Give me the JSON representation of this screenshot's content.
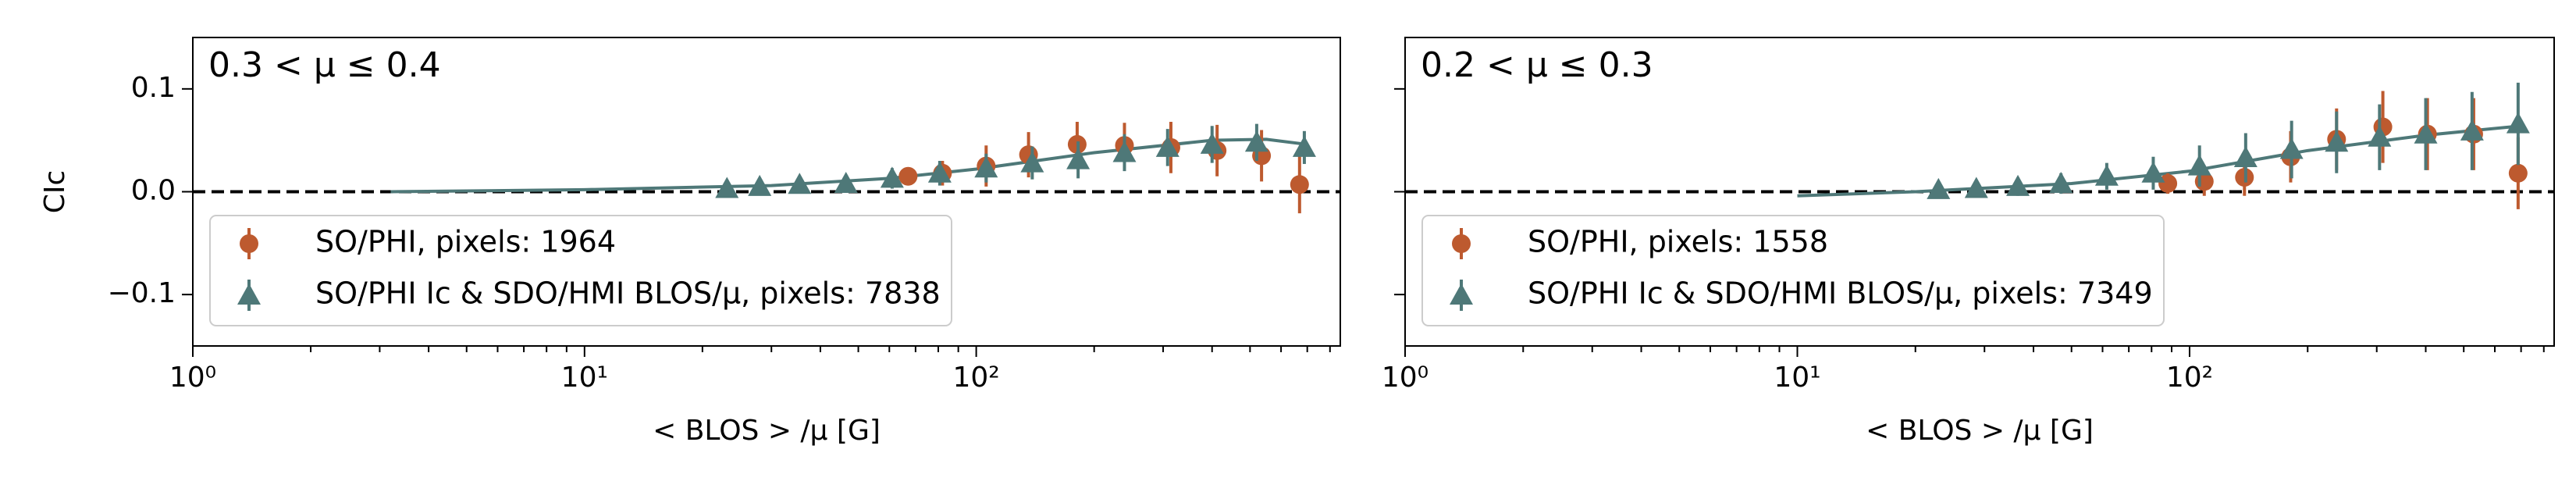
{
  "chart_data": [
    {
      "type": "scatter",
      "panel_label": "0.3 < μ ≤  0.4",
      "xlabel": "< BLOS > /μ [G]",
      "ylabel": "CIc",
      "log_x": true,
      "xlim": [
        1,
        850
      ],
      "ylim": [
        -0.15,
        0.15
      ],
      "xticks": [
        {
          "value": 1,
          "label": "10⁰"
        },
        {
          "value": 10,
          "label": "10¹"
        },
        {
          "value": 100,
          "label": "10²"
        }
      ],
      "yticks": [
        {
          "value": -0.1,
          "label": "−0.1"
        },
        {
          "value": 0,
          "label": "0.0"
        },
        0.1
      ],
      "show_ytick_labels": true,
      "reference_line": 0,
      "legend": "lower left",
      "series": [
        {
          "name": "SO/PHI, pixels: 1964",
          "color": "#bd5a2f",
          "marker": "circle",
          "x": [
            67,
            82,
            106,
            136,
            181,
            239,
            314,
            412,
            535,
            669
          ],
          "values": [
            0.015,
            0.018,
            0.025,
            0.036,
            0.046,
            0.045,
            0.043,
            0.04,
            0.035,
            0.007
          ],
          "errors": [
            0.008,
            0.012,
            0.02,
            0.022,
            0.022,
            0.022,
            0.025,
            0.025,
            0.025,
            0.028
          ]
        },
        {
          "name": "SO/PHI Ic & SDO/HMI BLOS/μ, pixels: 7838",
          "color": "#4e7878",
          "marker": "triangle",
          "x": [
            23.1,
            28,
            35.4,
            46.5,
            61,
            80.7,
            106,
            139,
            182,
            239,
            308,
            400,
            520,
            688
          ],
          "values": [
            0.003,
            0.005,
            0.007,
            0.008,
            0.013,
            0.018,
            0.023,
            0.028,
            0.031,
            0.038,
            0.043,
            0.046,
            0.048,
            0.043
          ],
          "errors": [
            0.006,
            0.006,
            0.007,
            0.008,
            0.01,
            0.012,
            0.014,
            0.016,
            0.018,
            0.018,
            0.018,
            0.018,
            0.018,
            0.016
          ]
        }
      ],
      "fit": {
        "color": "#4e7878",
        "x": [
          3.2,
          10,
          30,
          60,
          100,
          200,
          400,
          550,
          700
        ],
        "values": [
          0,
          0.002,
          0.006,
          0.013,
          0.022,
          0.038,
          0.05,
          0.051,
          0.046
        ]
      }
    },
    {
      "type": "scatter",
      "panel_label": "0.2 < μ ≤  0.3",
      "xlabel": "< BLOS > /μ [G]",
      "log_x": true,
      "xlim": [
        1,
        850
      ],
      "ylim": [
        -0.15,
        0.15
      ],
      "xticks": [
        {
          "value": 1,
          "label": "10⁰"
        },
        {
          "value": 10,
          "label": "10¹"
        },
        {
          "value": 100,
          "label": "10²"
        }
      ],
      "yticks": [
        -0.1,
        0,
        0.1
      ],
      "show_ytick_labels": false,
      "reference_line": 0,
      "legend": "lower left",
      "series": [
        {
          "name": "SO/PHI, pixels: 1558",
          "color": "#bd5a2f",
          "marker": "circle",
          "x": [
            88,
            109,
            138,
            181,
            237,
            311,
            404,
            530,
            688
          ],
          "values": [
            0.008,
            0.01,
            0.014,
            0.034,
            0.051,
            0.063,
            0.056,
            0.056,
            0.018
          ],
          "errors": [
            0.01,
            0.014,
            0.018,
            0.025,
            0.03,
            0.035,
            0.035,
            0.035,
            0.035
          ]
        },
        {
          "name": "SO/PHI Ic & SDO/HMI BLOS/μ, pixels: 7349",
          "color": "#4e7878",
          "marker": "triangle",
          "x": [
            22.9,
            28.6,
            36.5,
            47,
            61.5,
            80.8,
            106,
            139,
            182,
            237,
            305,
            400,
            525,
            688
          ],
          "values": [
            0.002,
            0.003,
            0.005,
            0.008,
            0.015,
            0.018,
            0.025,
            0.033,
            0.041,
            0.048,
            0.053,
            0.056,
            0.059,
            0.066
          ],
          "errors": [
            0.006,
            0.008,
            0.009,
            0.01,
            0.013,
            0.016,
            0.02,
            0.024,
            0.028,
            0.03,
            0.032,
            0.035,
            0.038,
            0.04
          ]
        }
      ],
      "fit": {
        "color": "#4e7878",
        "x": [
          10,
          20,
          50,
          100,
          200,
          400,
          700
        ],
        "values": [
          -0.004,
          0,
          0.008,
          0.02,
          0.04,
          0.055,
          0.064
        ]
      }
    }
  ]
}
